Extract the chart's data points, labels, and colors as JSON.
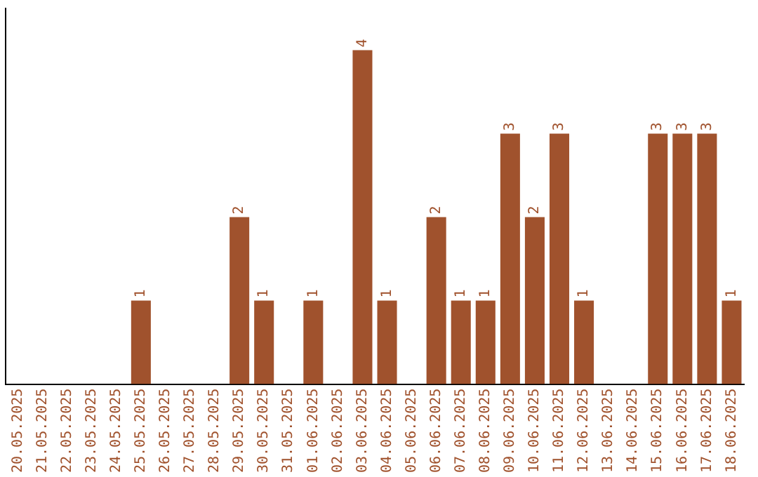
{
  "chart_data": {
    "type": "bar",
    "categories": [
      "20.05.2025",
      "21.05.2025",
      "22.05.2025",
      "23.05.2025",
      "24.05.2025",
      "25.05.2025",
      "26.05.2025",
      "27.05.2025",
      "28.05.2025",
      "29.05.2025",
      "30.05.2025",
      "31.05.2025",
      "01.06.2025",
      "02.06.2025",
      "03.06.2025",
      "04.06.2025",
      "05.06.2025",
      "06.06.2025",
      "07.06.2025",
      "08.06.2025",
      "09.06.2025",
      "10.06.2025",
      "11.06.2025",
      "12.06.2025",
      "13.06.2025",
      "14.06.2025",
      "15.06.2025",
      "16.06.2025",
      "17.06.2025",
      "18.06.2025"
    ],
    "values": [
      0,
      0,
      0,
      0,
      0,
      1,
      0,
      0,
      0,
      2,
      1,
      0,
      1,
      0,
      4,
      1,
      0,
      2,
      1,
      1,
      3,
      2,
      3,
      1,
      0,
      0,
      3,
      3,
      3,
      1
    ],
    "value_labels": [
      null,
      null,
      null,
      null,
      null,
      "1",
      null,
      null,
      null,
      "2",
      "1",
      null,
      "1",
      null,
      "4",
      "1",
      null,
      "2",
      "1",
      "1",
      "3",
      "2",
      "3",
      "1",
      null,
      null,
      "3",
      "3",
      "3",
      "1"
    ],
    "color": "#a0522d",
    "grid": false,
    "legend": false,
    "tick_labels": "x"
  }
}
